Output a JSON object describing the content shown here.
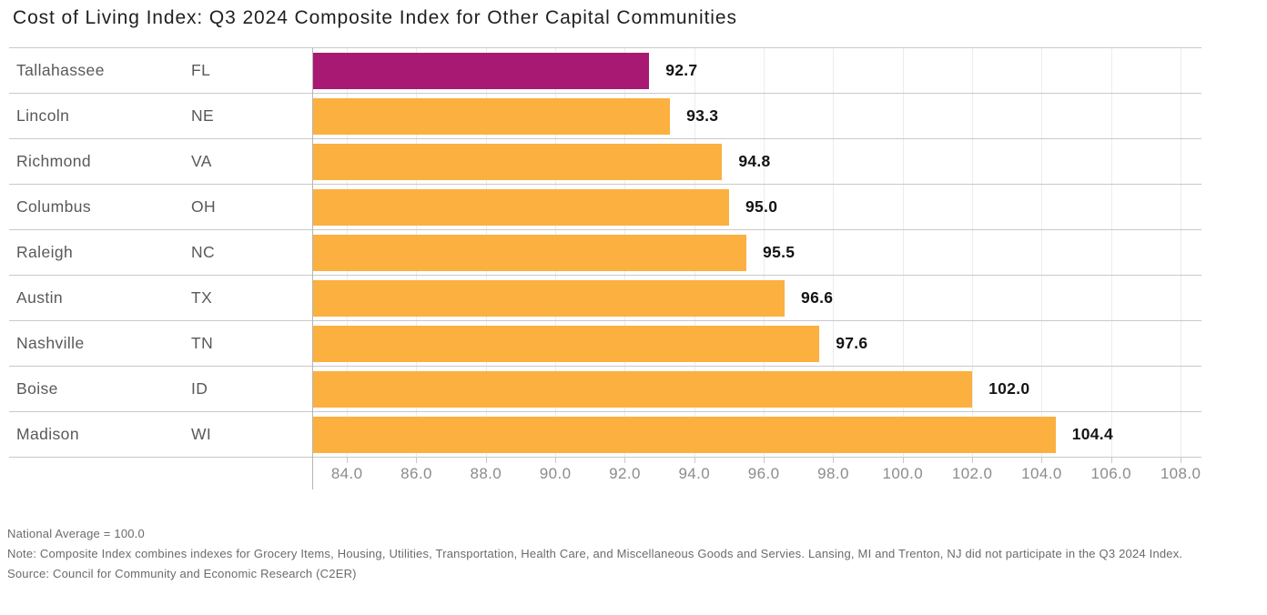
{
  "chart_data": {
    "type": "bar",
    "orientation": "horizontal",
    "title": "Cost of Living Index: Q3 2024 Composite Index for Other Capital Communities",
    "categories": [
      "Tallahassee FL",
      "Lincoln NE",
      "Richmond VA",
      "Columbus OH",
      "Raleigh NC",
      "Austin TX",
      "Nashville TN",
      "Boise ID",
      "Madison WI"
    ],
    "values": [
      92.7,
      93.3,
      94.8,
      95.0,
      95.5,
      96.6,
      97.6,
      102.0,
      104.4
    ],
    "rows": [
      {
        "city": "Tallahassee",
        "state": "FL",
        "value": 92.7,
        "highlight": true
      },
      {
        "city": "Lincoln",
        "state": "NE",
        "value": 93.3,
        "highlight": false
      },
      {
        "city": "Richmond",
        "state": "VA",
        "value": 94.8,
        "highlight": false
      },
      {
        "city": "Columbus",
        "state": "OH",
        "value": 95.0,
        "highlight": false
      },
      {
        "city": "Raleigh",
        "state": "NC",
        "value": 95.5,
        "highlight": false
      },
      {
        "city": "Austin",
        "state": "TX",
        "value": 96.6,
        "highlight": false
      },
      {
        "city": "Nashville",
        "state": "TN",
        "value": 97.6,
        "highlight": false
      },
      {
        "city": "Boise",
        "state": "ID",
        "value": 102.0,
        "highlight": false
      },
      {
        "city": "Madison",
        "state": "WI",
        "value": 104.4,
        "highlight": false
      }
    ],
    "xlabel": "",
    "ylabel": "",
    "axis": {
      "plot_min": 83.0,
      "plot_max": 108.6,
      "ticks": [
        84.0,
        86.0,
        88.0,
        90.0,
        92.0,
        94.0,
        96.0,
        98.0,
        100.0,
        102.0,
        104.0,
        106.0,
        108.0
      ],
      "tick_decimals": 1
    },
    "grid": "vertical-on",
    "legend": "none",
    "colors": {
      "bar": "#FBB040",
      "highlight_bar": "#A71973",
      "gridline": "#ececec",
      "row_line": "#c9c9c9",
      "axis_line": "#b5b5b5",
      "tick_label": "#8c8c8c",
      "category_label": "#595959",
      "value_label": "#141414",
      "title": "#1f1f1f"
    }
  },
  "footer": {
    "national_average": "National Average = 100.0",
    "note": "Note: Composite Index combines indexes for Grocery Items, Housing, Utilities, Transportation, Health Care, and Miscellaneous Goods and Servies. Lansing, MI and Trenton, NJ did not participate in the Q3 2024 Index.",
    "source": "Source: Council for Community and Economic Research (C2ER)"
  }
}
